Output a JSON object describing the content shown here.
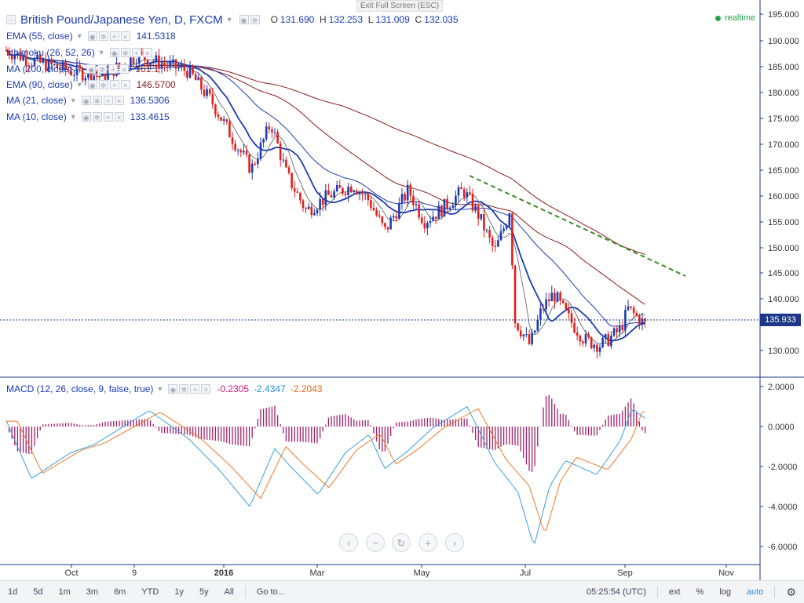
{
  "toolbar": {
    "exit_full_screen": "Exit Full Screen (ESC)",
    "realtime": "realtime"
  },
  "main_chart": {
    "symbol_title": "British Pound/Japanese Yen, D, FXCM",
    "ohlc": {
      "o_label": "O",
      "o": "131.690",
      "h_label": "H",
      "h": "132.253",
      "l_label": "L",
      "l": "131.009",
      "c_label": "C",
      "c": "132.035"
    },
    "current_price": "135.933",
    "price_ticks": [
      "195.000",
      "190.000",
      "185.000",
      "180.000",
      "175.000",
      "170.000",
      "165.000",
      "160.000",
      "155.000",
      "150.000",
      "145.000",
      "140.000",
      "130.000"
    ],
    "time_ticks": [
      "Oct",
      "9",
      "2016",
      "Mar",
      "May",
      "Jul",
      "Sep",
      "Nov"
    ],
    "indicators": [
      {
        "name": "EMA (55, close)",
        "value": "141.5318",
        "color": "#1a3bb3"
      },
      {
        "name": "Ichimoku (26, 52, 26)",
        "value": "",
        "color": "#1a3bb3"
      },
      {
        "name": "MA (200, close)",
        "value": "161.1",
        "color": "#8b1a1a"
      },
      {
        "name": "EMA (90, close)",
        "value": "146.5700",
        "color": "#8b1a1a"
      },
      {
        "name": "MA (21, close)",
        "value": "136.5306",
        "color": "#1a3bb3"
      },
      {
        "name": "MA (10, close)",
        "value": "133.4615",
        "color": "#1a3bb3"
      }
    ]
  },
  "macd_pane": {
    "label": "MACD (12, 26, close, 9, false, true)",
    "hist": "-0.2305",
    "macd": "-2.4347",
    "signal": "-2.2043",
    "ticks": [
      "2.0000",
      "0.0000",
      "-2.0000",
      "-4.0000",
      "-6.0000"
    ]
  },
  "bottom_bar": {
    "timeframes": [
      "1d",
      "5d",
      "1m",
      "3m",
      "6m",
      "YTD",
      "1y",
      "5y",
      "All"
    ],
    "goto": "Go to...",
    "clock": "05:25:54 (UTC)",
    "ext": "ext",
    "percent": "%",
    "log": "log",
    "auto": "auto"
  },
  "icons": {
    "settings": "gear-icon",
    "zoom_in": "plus-icon",
    "zoom_out": "minus-icon",
    "reset": "reset-icon",
    "scroll_left": "chevron-left-icon",
    "scroll_right": "chevron-right-icon"
  },
  "colors": {
    "up_candle": "#1a3bb3",
    "down_candle": "#e0201b",
    "ma_fast": "#1a3bb3",
    "ma_slow": "#8b1a1a",
    "trendline": "#3a8a2a",
    "macd_line": "#3aa0e0",
    "signal_line": "#f07a2a",
    "histogram": "#a0206a"
  }
}
